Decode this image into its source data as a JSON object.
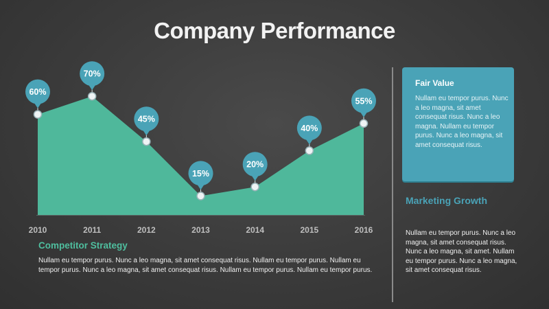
{
  "title": "Company Performance",
  "colors": {
    "background": "#3b3b3b",
    "area": "#4fb89b",
    "marker_bubble": "#4aa3b7",
    "card": "#4aa3b7",
    "accent_green": "#4fbf9f",
    "accent_blue": "#4aa3b7"
  },
  "chart_data": {
    "type": "area",
    "title": "",
    "xlabel": "",
    "ylabel": "",
    "categories": [
      "2010",
      "2011",
      "2012",
      "2013",
      "2014",
      "2015",
      "2016"
    ],
    "values": [
      60,
      70,
      45,
      15,
      20,
      40,
      55
    ],
    "data_labels": [
      "60%",
      "70%",
      "45%",
      "15%",
      "20%",
      "40%",
      "55%"
    ],
    "ylim": [
      -10,
      80
    ],
    "grid": false,
    "legend": "none"
  },
  "fair_value": {
    "title": "Fair Value",
    "text": "Nullam eu tempor purus. Nunc a leo magna, sit amet consequat risus. Nunc a leo magna. Nullam eu tempor purus. Nunc a leo magna, sit amet consequat risus."
  },
  "marketing_growth": {
    "title": "Marketing Growth",
    "text": "Nullam eu tempor purus. Nunc a leo magna, sit amet consequat risus. Nunc a leo magna, sit amet. Nullam eu tempor purus. Nunc a leo magna, sit amet consequat risus."
  },
  "competitor_strategy": {
    "title": "Competitor Strategy",
    "text": "Nullam eu tempor purus. Nunc a leo magna, sit amet consequat risus. Nullam eu tempor purus. Nullam eu tempor purus. Nunc a leo magna, sit amet consequat risus. Nullam eu tempor purus. Nullam eu tempor purus."
  }
}
